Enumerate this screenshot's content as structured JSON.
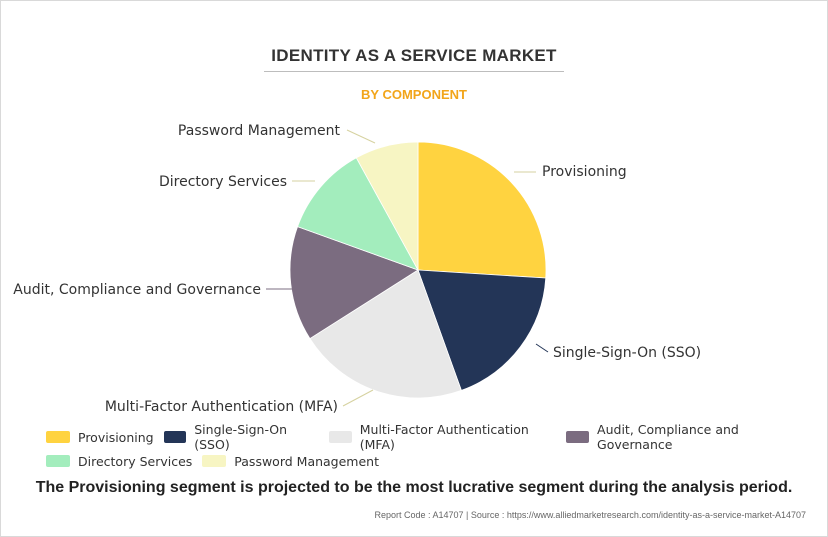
{
  "title": "IDENTITY AS A SERVICE MARKET",
  "subtitle": "BY COMPONENT",
  "chart_data": {
    "type": "pie",
    "categories": [
      "Provisioning",
      "Single-Sign-On (SSO)",
      "Multi-Factor Authentication (MFA)",
      "Audit, Compliance and Governance",
      "Directory Services",
      "Password Management"
    ],
    "values": [
      26.0,
      18.5,
      21.5,
      14.5,
      11.5,
      8.0
    ],
    "colors": [
      "#ffd340",
      "#233557",
      "#e8e8e8",
      "#7b6c80",
      "#a3edbd",
      "#f7f5c3"
    ],
    "legend": "bottom"
  },
  "caption": "The Provisioning segment is projected to be the most lucrative segment during the analysis period.",
  "footer": "Report Code : A14707  |  Source : https://www.alliedmarketresearch.com/identity-as-a-service-market-A14707"
}
